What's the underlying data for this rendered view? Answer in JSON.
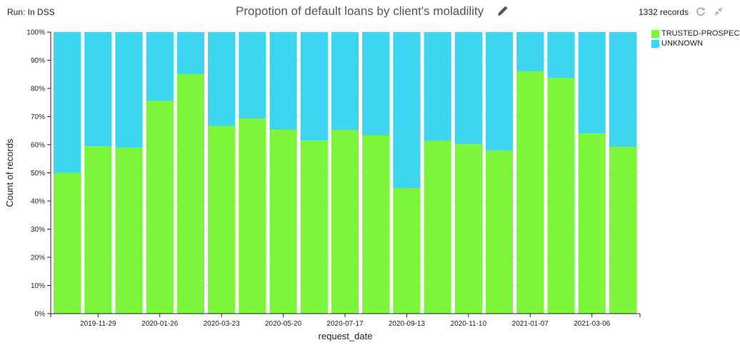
{
  "header": {
    "run_label": "Run: In DSS",
    "title": "Propotion of default loans by client's moladility",
    "records": "1332 records",
    "edit_icon": "pencil-icon",
    "refresh_icon": "refresh-icon",
    "collapse_icon": "collapse-icon"
  },
  "colors": {
    "trusted": "#7df53a",
    "unknown": "#3dd5f2"
  },
  "chart_data": {
    "type": "bar",
    "stacked": true,
    "normalized": true,
    "xlabel": "request_date",
    "ylabel": "Count of records",
    "ylim": [
      0,
      100
    ],
    "yticks": [
      "0%",
      "10%",
      "20%",
      "30%",
      "40%",
      "50%",
      "60%",
      "70%",
      "80%",
      "90%",
      "100%"
    ],
    "xtick_labels": [
      "2019-11-29",
      "2020-01-26",
      "2020-03-23",
      "2020-05-20",
      "2020-07-17",
      "2020-09-13",
      "2020-11-10",
      "2021-01-07",
      "2021-03-06"
    ],
    "legend_position": "top-right",
    "series": [
      {
        "name": "TRUSTED-PROSPECT",
        "values": [
          50,
          59.5,
          59,
          75.5,
          85,
          66.7,
          69.3,
          65.3,
          61.5,
          65.2,
          63.3,
          44.5,
          61.3,
          60.2,
          58,
          86,
          83.8,
          64,
          59.2
        ]
      },
      {
        "name": "UNKNOWN",
        "values": [
          50,
          40.5,
          41,
          24.5,
          15,
          33.3,
          30.7,
          34.7,
          38.5,
          34.8,
          36.7,
          55.5,
          38.7,
          39.8,
          42,
          14,
          16.2,
          36,
          40.8
        ]
      }
    ]
  }
}
